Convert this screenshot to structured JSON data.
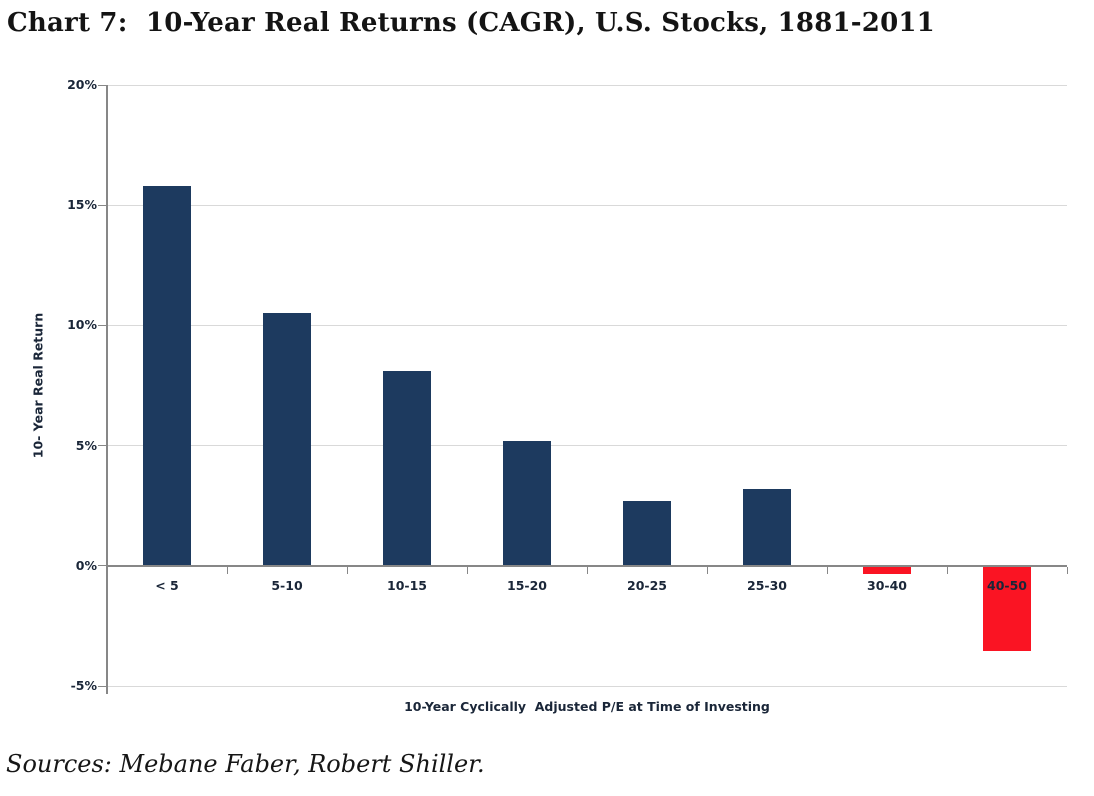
{
  "page": {
    "title": "Chart 7:  10-Year Real Returns (CAGR), U.S. Stocks, 1881-2011",
    "source_note": "Sources: Mebane Faber, Robert Shiller."
  },
  "colors": {
    "bar_positive": "#1d3a5f",
    "bar_negative": "#fa1423",
    "gridline": "#d9d9d9",
    "axis": "#878787",
    "label_text": "#1a2638",
    "title_text": "#141414"
  },
  "chart_data": {
    "type": "bar",
    "title": "Chart 7: 10-Year Real Returns (CAGR), U.S. Stocks, 1881-2011",
    "categories": [
      "< 5",
      "5-10",
      "10-15",
      "15-20",
      "20-25",
      "25-30",
      "30-40",
      "40-50"
    ],
    "values": [
      15.8,
      10.5,
      8.1,
      5.2,
      2.7,
      3.2,
      -0.3,
      -3.5
    ],
    "bar_colors": [
      "#1d3a5f",
      "#1d3a5f",
      "#1d3a5f",
      "#1d3a5f",
      "#1d3a5f",
      "#1d3a5f",
      "#fa1423",
      "#fa1423"
    ],
    "xlabel": "10-Year Cyclically  Adjusted P/E at Time of Investing",
    "ylabel": "10- Year Real Return",
    "ylim": [
      -5,
      20
    ],
    "yticks": [
      {
        "value": 20,
        "label": "20%"
      },
      {
        "value": 15,
        "label": "15%"
      },
      {
        "value": 10,
        "label": "10%"
      },
      {
        "value": 5,
        "label": "5%"
      },
      {
        "value": 0,
        "label": "0%"
      },
      {
        "value": -5,
        "label": "-5%"
      }
    ],
    "grid": true,
    "legend": false
  }
}
